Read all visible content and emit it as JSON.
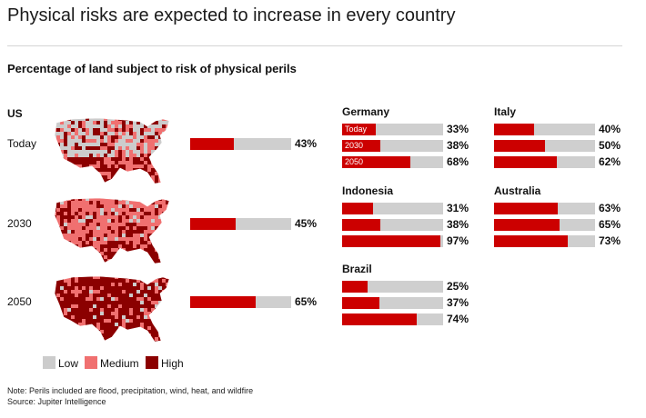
{
  "header": {
    "title": "Physical risks are expected to increase in every country",
    "subtitle": "Percentage of land subject to risk of physical perils"
  },
  "colors": {
    "bar_fill": "#cc0000",
    "bar_track": "#cfcfcf",
    "low": "#cccccc",
    "medium": "#f07070",
    "high": "#8b0000"
  },
  "chart_data": [
    {
      "type": "bar",
      "title": "US",
      "categories": [
        "Today",
        "2030",
        "2050"
      ],
      "values": [
        43,
        45,
        65
      ],
      "value_labels": [
        "43%",
        "45%",
        "65%"
      ],
      "unit": "%",
      "xlim": [
        0,
        100
      ],
      "maps": [
        {
          "period": "Today",
          "dominant": "low"
        },
        {
          "period": "2030",
          "dominant": "medium"
        },
        {
          "period": "2050",
          "dominant": "high"
        }
      ]
    },
    {
      "type": "bar",
      "title": "Germany",
      "categories": [
        "Today",
        "2030",
        "2050"
      ],
      "values": [
        33,
        38,
        68
      ],
      "value_labels": [
        "33%",
        "38%",
        "68%"
      ],
      "unit": "%",
      "xlim": [
        0,
        100
      ]
    },
    {
      "type": "bar",
      "title": "Italy",
      "categories": [
        "Today",
        "2030",
        "2050"
      ],
      "values": [
        40,
        50,
        62
      ],
      "value_labels": [
        "40%",
        "50%",
        "62%"
      ],
      "unit": "%",
      "xlim": [
        0,
        100
      ]
    },
    {
      "type": "bar",
      "title": "Indonesia",
      "categories": [
        "Today",
        "2030",
        "2050"
      ],
      "values": [
        31,
        38,
        97
      ],
      "value_labels": [
        "31%",
        "38%",
        "97%"
      ],
      "unit": "%",
      "xlim": [
        0,
        100
      ]
    },
    {
      "type": "bar",
      "title": "Australia",
      "categories": [
        "Today",
        "2030",
        "2050"
      ],
      "values": [
        63,
        65,
        73
      ],
      "value_labels": [
        "63%",
        "65%",
        "73%"
      ],
      "unit": "%",
      "xlim": [
        0,
        100
      ]
    },
    {
      "type": "bar",
      "title": "Brazil",
      "categories": [
        "Today",
        "2030",
        "2050"
      ],
      "values": [
        25,
        37,
        74
      ],
      "value_labels": [
        "25%",
        "37%",
        "74%"
      ],
      "unit": "%",
      "xlim": [
        0,
        100
      ]
    }
  ],
  "legend": {
    "items": [
      {
        "label": "Low",
        "color": "#cccccc"
      },
      {
        "label": "Medium",
        "color": "#f07070"
      },
      {
        "label": "High",
        "color": "#8b0000"
      }
    ]
  },
  "footer": {
    "note": "Note: Perils included are flood, precipitation, wind, heat, and wildfire",
    "source": "Source: Jupiter Intelligence"
  }
}
